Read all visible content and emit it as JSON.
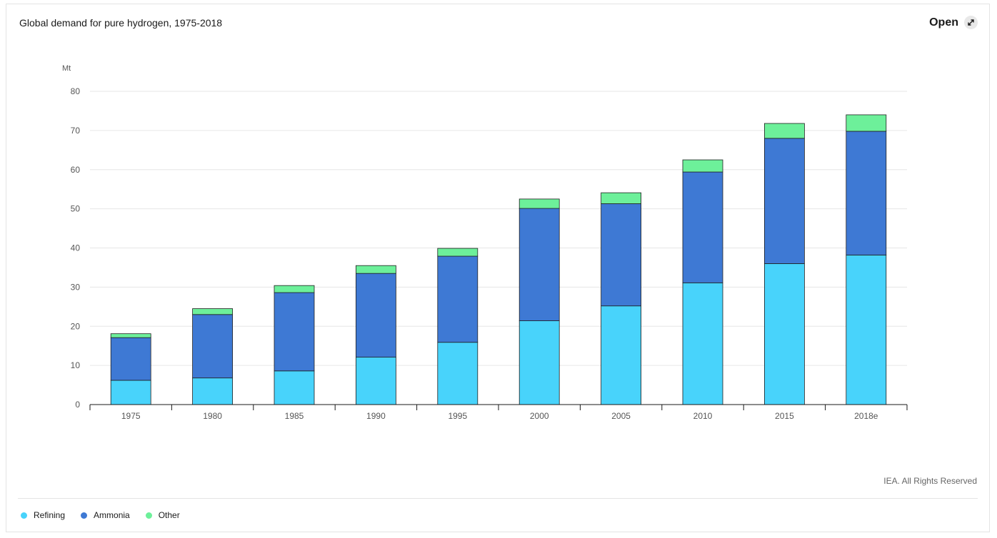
{
  "header": {
    "title": "Global demand for pure hydrogen, 1975-2018",
    "open_label": "Open"
  },
  "footer": {
    "copyright": "IEA. All Rights Reserved"
  },
  "colors": {
    "Refining": "#48d3fb",
    "Ammonia": "#3e79d4",
    "Other": "#6df09a"
  },
  "chart_data": {
    "type": "bar",
    "stacked": true,
    "title": "Global demand for pure hydrogen, 1975-2018",
    "ylabel": "Mt",
    "xlabel": "",
    "ylim": [
      0,
      80
    ],
    "yticks": [
      0,
      10,
      20,
      30,
      40,
      50,
      60,
      70,
      80
    ],
    "grid": true,
    "legend_position": "bottom-left",
    "categories": [
      "1975",
      "1980",
      "1985",
      "1990",
      "1995",
      "2000",
      "2005",
      "2010",
      "2015",
      "2018e"
    ],
    "series": [
      {
        "name": "Refining",
        "values": [
          6.2,
          6.8,
          8.6,
          12.1,
          15.9,
          21.4,
          25.2,
          31.1,
          36.0,
          38.2
        ]
      },
      {
        "name": "Ammonia",
        "values": [
          10.9,
          16.2,
          20.0,
          21.4,
          22.0,
          28.7,
          26.1,
          28.3,
          32.0,
          31.6
        ]
      },
      {
        "name": "Other",
        "values": [
          1.0,
          1.5,
          1.8,
          2.0,
          2.0,
          2.4,
          2.8,
          3.1,
          3.8,
          4.2
        ]
      }
    ]
  }
}
